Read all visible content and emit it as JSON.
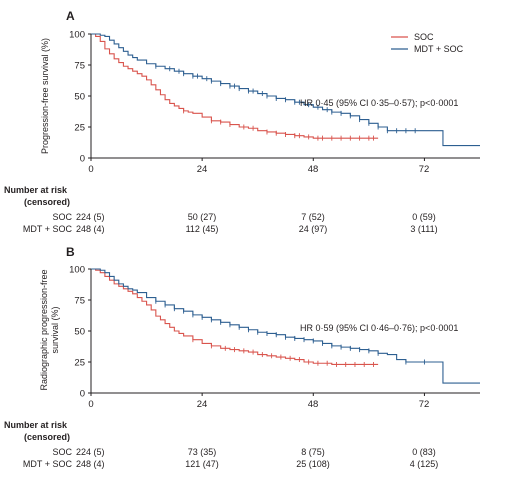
{
  "chart_data": [
    {
      "type": "line",
      "panel": "A",
      "ylabel": "Progression-free survival (%)",
      "xlim": [
        0,
        84
      ],
      "ylim": [
        0,
        100
      ],
      "x_ticks": [
        "0",
        "24",
        "48",
        "72"
      ],
      "y_ticks": [
        "0",
        "25",
        "50",
        "75",
        "100"
      ],
      "annotation": "HR 0·45 (95% CI 0·35–0·57); p<0·0001",
      "legend": {
        "position": "top-right"
      },
      "series": [
        {
          "name": "SOC",
          "color": "#d9544d",
          "x": [
            0,
            1,
            2,
            3,
            4,
            5,
            6,
            7,
            8,
            9,
            10,
            11,
            12,
            13,
            14,
            15,
            16,
            17,
            18,
            19,
            20,
            21,
            22,
            24,
            26,
            28,
            30,
            32,
            34,
            36,
            38,
            40,
            42,
            44,
            46,
            48,
            50,
            52,
            54,
            56,
            58,
            60,
            62
          ],
          "y": [
            100,
            98,
            94,
            88,
            84,
            80,
            77,
            74,
            72,
            70,
            68,
            66,
            63,
            59,
            55,
            51,
            47,
            44,
            42,
            40,
            38,
            37,
            36,
            33,
            30,
            29,
            27,
            25,
            24,
            22,
            21,
            20,
            19,
            18,
            17,
            16,
            16,
            16,
            16,
            16,
            16,
            16,
            16
          ],
          "censor_x": [
            20,
            26,
            28,
            30,
            33,
            35,
            38,
            40,
            42,
            44,
            45,
            47,
            49,
            50,
            52,
            54,
            56,
            58,
            60,
            61
          ]
        },
        {
          "name": "MDT + SOC",
          "color": "#2d5f91",
          "x": [
            0,
            1,
            2,
            3,
            4,
            5,
            6,
            7,
            8,
            9,
            10,
            12,
            14,
            16,
            18,
            20,
            22,
            24,
            26,
            28,
            30,
            32,
            34,
            36,
            38,
            40,
            42,
            44,
            46,
            48,
            50,
            52,
            54,
            56,
            58,
            60,
            62,
            64,
            66,
            68,
            70,
            72,
            74,
            76,
            78,
            84
          ],
          "y": [
            100,
            100,
            99,
            98,
            95,
            92,
            89,
            86,
            83,
            81,
            79,
            76,
            74,
            72,
            70,
            68,
            66,
            64,
            62,
            60,
            58,
            56,
            54,
            52,
            50,
            48,
            47,
            45,
            43,
            41,
            39,
            37,
            36,
            34,
            31,
            28,
            25,
            22,
            22,
            22,
            22,
            22,
            22,
            10,
            10,
            10
          ],
          "censor_x": [
            14,
            17,
            19,
            20,
            22,
            23,
            25,
            26,
            28,
            30,
            31,
            32,
            34,
            35,
            37,
            38,
            40,
            42,
            44,
            45,
            47,
            49,
            51,
            52,
            54,
            56,
            58,
            60,
            62,
            64,
            66,
            68,
            70
          ]
        }
      ],
      "risk_table": {
        "title": [
          "Number at risk",
          "(censored)"
        ],
        "rows": [
          {
            "label": "SOC",
            "values": [
              "224 (5)",
              "50 (27)",
              "7 (52)",
              "0 (59)"
            ]
          },
          {
            "label": "MDT + SOC",
            "values": [
              "248 (4)",
              "112 (45)",
              "24 (97)",
              "3 (111)"
            ]
          }
        ]
      }
    },
    {
      "type": "line",
      "panel": "B",
      "ylabel": "Radiographic progression-free survival (%)",
      "xlim": [
        0,
        84
      ],
      "ylim": [
        0,
        100
      ],
      "x_ticks": [
        "0",
        "24",
        "48",
        "72"
      ],
      "y_ticks": [
        "0",
        "25",
        "50",
        "75",
        "100"
      ],
      "annotation": "HR 0·59 (95% CI 0·46–0·76); p<0·0001",
      "series": [
        {
          "name": "SOC",
          "color": "#d9544d",
          "x": [
            0,
            1,
            2,
            3,
            4,
            5,
            6,
            7,
            8,
            9,
            10,
            11,
            12,
            13,
            14,
            15,
            16,
            17,
            18,
            19,
            20,
            22,
            24,
            26,
            28,
            30,
            32,
            34,
            36,
            38,
            40,
            42,
            44,
            46,
            48,
            50,
            52,
            54,
            56,
            58,
            60,
            62
          ],
          "y": [
            100,
            99,
            97,
            94,
            91,
            88,
            86,
            84,
            82,
            80,
            77,
            74,
            71,
            67,
            62,
            59,
            56,
            53,
            50,
            48,
            46,
            43,
            40,
            38,
            36,
            35,
            34,
            33,
            31,
            30,
            29,
            28,
            27,
            25,
            24,
            24,
            23,
            23,
            23,
            23,
            23,
            23
          ],
          "censor_x": [
            22,
            26,
            29,
            31,
            33,
            35,
            37,
            39,
            41,
            43,
            45,
            47,
            49,
            51,
            53,
            55,
            57,
            59,
            61
          ]
        },
        {
          "name": "MDT + SOC",
          "color": "#2d5f91",
          "x": [
            0,
            1,
            2,
            3,
            4,
            5,
            6,
            7,
            8,
            9,
            10,
            12,
            14,
            16,
            18,
            20,
            22,
            24,
            26,
            28,
            30,
            32,
            34,
            36,
            38,
            40,
            42,
            44,
            46,
            48,
            50,
            52,
            54,
            56,
            58,
            60,
            62,
            64,
            66,
            68,
            70,
            72,
            74,
            76,
            78,
            84
          ],
          "y": [
            100,
            100,
            99,
            97,
            94,
            91,
            88,
            86,
            84,
            83,
            81,
            77,
            74,
            71,
            68,
            66,
            63,
            61,
            59,
            57,
            55,
            53,
            51,
            49,
            48,
            47,
            45,
            44,
            43,
            42,
            40,
            38,
            37,
            36,
            35,
            34,
            32,
            31,
            27,
            25,
            25,
            25,
            25,
            8,
            8,
            8
          ],
          "censor_x": [
            14,
            16,
            18,
            20,
            22,
            24,
            26,
            28,
            30,
            32,
            34,
            36,
            38,
            40,
            42,
            44,
            46,
            48,
            50,
            52,
            54,
            56,
            58,
            60,
            62,
            68,
            72
          ]
        }
      ],
      "risk_table": {
        "title": [
          "Number at risk",
          "(censored)"
        ],
        "rows": [
          {
            "label": "SOC",
            "values": [
              "224 (5)",
              "73 (35)",
              "8 (75)",
              "0 (83)"
            ]
          },
          {
            "label": "MDT + SOC",
            "values": [
              "248 (4)",
              "121 (47)",
              "25 (108)",
              "4 (125)"
            ]
          }
        ]
      }
    }
  ]
}
